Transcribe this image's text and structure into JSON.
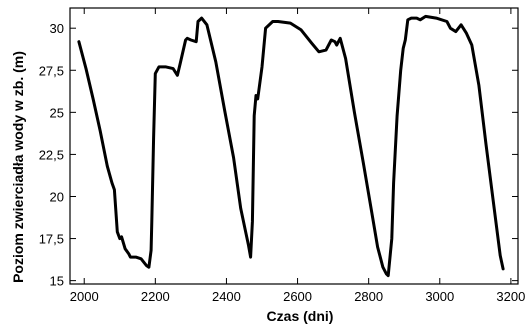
{
  "chart_data": {
    "type": "line",
    "title": "",
    "xlabel": "Czas (dni)",
    "ylabel": "Poziom zwierciadła wody w zb. (m)",
    "xlim": [
      1960,
      3220
    ],
    "ylim": [
      14.8,
      31.2
    ],
    "grid": false,
    "x_ticks": [
      2000,
      2200,
      2400,
      2600,
      2800,
      3000,
      3200
    ],
    "x_tick_labels": [
      "2000",
      "2200",
      "2400",
      "2600",
      "2800",
      "3000",
      "3200"
    ],
    "y_ticks": [
      15,
      17.5,
      20,
      22.5,
      25,
      27.5,
      30
    ],
    "y_tick_labels": [
      "15",
      "17,5",
      "20",
      "22,5",
      "25",
      "27,5",
      "30"
    ],
    "series": [
      {
        "color": "#000000",
        "x": [
          1985,
          2005,
          2025,
          2045,
          2065,
          2078,
          2085,
          2093,
          2100,
          2105,
          2115,
          2125,
          2130,
          2145,
          2160,
          2175,
          2182,
          2188,
          2190,
          2195,
          2200,
          2210,
          2230,
          2250,
          2262,
          2270,
          2285,
          2290,
          2300,
          2315,
          2320,
          2330,
          2345,
          2370,
          2395,
          2420,
          2440,
          2455,
          2462,
          2468,
          2473,
          2478,
          2483,
          2488,
          2500,
          2510,
          2530,
          2545,
          2580,
          2610,
          2640,
          2660,
          2680,
          2695,
          2705,
          2710,
          2720,
          2735,
          2760,
          2785,
          2810,
          2825,
          2840,
          2850,
          2855,
          2865,
          2870,
          2880,
          2890,
          2897,
          2903,
          2910,
          2920,
          2935,
          2945,
          2960,
          2990,
          3020,
          3030,
          3045,
          3060,
          3075,
          3090,
          3110,
          3130,
          3150,
          3170,
          3178
        ],
        "y": [
          29.2,
          27.6,
          25.8,
          23.9,
          21.8,
          20.8,
          20.4,
          17.9,
          17.5,
          17.6,
          16.9,
          16.6,
          16.4,
          16.4,
          16.3,
          15.9,
          15.8,
          16.8,
          18.5,
          23.5,
          27.3,
          27.7,
          27.7,
          27.6,
          27.2,
          27.9,
          29.3,
          29.4,
          29.3,
          29.2,
          30.4,
          30.6,
          30.2,
          28.0,
          25.1,
          22.3,
          19.3,
          17.8,
          17.1,
          16.4,
          18.5,
          24.8,
          26.0,
          25.8,
          27.7,
          30.0,
          30.4,
          30.4,
          30.3,
          29.9,
          29.1,
          28.6,
          28.7,
          29.3,
          29.2,
          29.0,
          29.4,
          28.2,
          25.0,
          22.0,
          18.9,
          17.0,
          15.8,
          15.4,
          15.3,
          17.5,
          20.8,
          24.8,
          27.5,
          28.8,
          29.3,
          30.5,
          30.6,
          30.6,
          30.5,
          30.7,
          30.6,
          30.4,
          30.0,
          29.8,
          30.2,
          29.7,
          29.0,
          26.6,
          23.1,
          19.8,
          16.5,
          15.7
        ]
      }
    ]
  }
}
